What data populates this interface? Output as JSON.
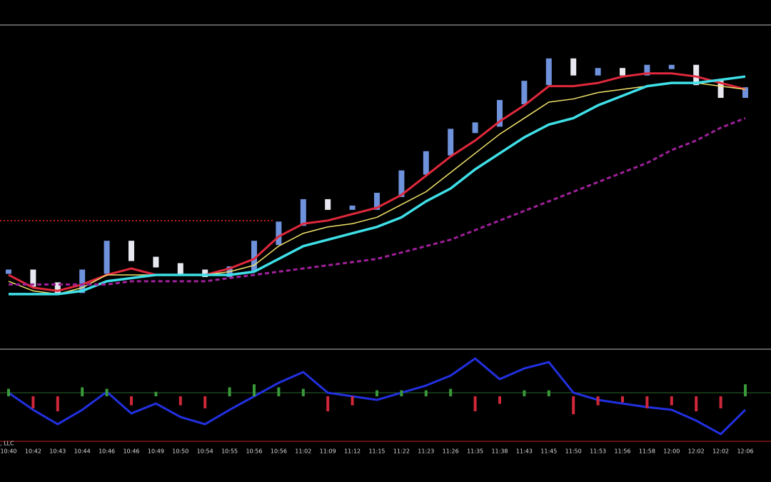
{
  "chart_data": [
    {
      "type": "line",
      "ylim": [
        0,
        100
      ],
      "series": [
        {
          "name": "price",
          "kind": "bricks",
          "color": "#6f92dc",
          "values": [
            24,
            20,
            18,
            24,
            33,
            28,
            26,
            24,
            23,
            25,
            33,
            39,
            46,
            44,
            44,
            48,
            55,
            61,
            68,
            70,
            77,
            83,
            90,
            86,
            87,
            86,
            88,
            88,
            83,
            79,
            81
          ]
        },
        {
          "name": "fast",
          "color": "#e0283c",
          "width": 3,
          "values": [
            23,
            19,
            18,
            20,
            23,
            25,
            23,
            23,
            23,
            25,
            28,
            35,
            39,
            40,
            42,
            44,
            48,
            54,
            60,
            65,
            71,
            76,
            82,
            82,
            83,
            85,
            86,
            86,
            85,
            83,
            81
          ]
        },
        {
          "name": "mid",
          "color": "#f2e26a",
          "width": 1.5,
          "values": [
            21,
            18,
            17,
            19,
            23,
            23,
            23,
            23,
            23,
            24,
            26,
            32,
            36,
            38,
            39,
            41,
            45,
            49,
            55,
            61,
            67,
            72,
            77,
            78,
            80,
            81,
            82,
            83,
            83,
            82,
            81
          ]
        },
        {
          "name": "slow",
          "color": "#3fe0e8",
          "width": 3.5,
          "values": [
            17,
            17,
            17,
            18,
            21,
            22,
            23,
            23,
            23,
            23,
            24,
            28,
            32,
            34,
            36,
            38,
            41,
            46,
            50,
            56,
            61,
            66,
            70,
            72,
            76,
            79,
            82,
            83,
            83,
            84,
            85
          ]
        },
        {
          "name": "trend",
          "color": "#a0209a",
          "width": 3,
          "dash": "6 4",
          "values": [
            20,
            20,
            20,
            20,
            20,
            21,
            21,
            21,
            21,
            22,
            23,
            24,
            25,
            26,
            27,
            28,
            30,
            32,
            34,
            37,
            40,
            43,
            46,
            49,
            52,
            55,
            58,
            62,
            65,
            69,
            72
          ]
        }
      ]
    },
    {
      "type": "line",
      "footer": ", LLC",
      "categories": [
        "10:40",
        "10:42",
        "10:43",
        "10:44",
        "10:46",
        "10:46",
        "10:49",
        "10:50",
        "10:54",
        "10:55",
        "10:56",
        "10:56",
        "11:02",
        "11:09",
        "11:12",
        "11:15",
        "11:22",
        "11:23",
        "11:26",
        "11:35",
        "11:38",
        "11:43",
        "11:45",
        "11:50",
        "11:53",
        "11:56",
        "11:58",
        "12:00",
        "12:02",
        "12:02",
        "12:06"
      ],
      "ylim": [
        0,
        100
      ],
      "y2lim": [
        -30,
        30
      ],
      "series": [
        {
          "name": "oscillator",
          "color": "#2230e0",
          "width": 3,
          "values": [
            54,
            35,
            19,
            35,
            55,
            31,
            42,
            27,
            19,
            35,
            50,
            65,
            77,
            54,
            50,
            46,
            54,
            62,
            73,
            92,
            69,
            81,
            88,
            54,
            46,
            42,
            38,
            35,
            23,
            8,
            35
          ]
        },
        {
          "name": "histogram",
          "kind": "hist",
          "axis": "y2",
          "color": "#3a9a3a",
          "negative_color": "#d0283a",
          "values": [
            5,
            -8,
            -10,
            6,
            5,
            -6,
            3,
            -6,
            -8,
            6,
            8,
            6,
            5,
            -10,
            -6,
            4,
            4,
            4,
            5,
            -10,
            -5,
            4,
            4,
            -12,
            -6,
            -4,
            -8,
            -6,
            -10,
            -8,
            8
          ]
        }
      ]
    }
  ]
}
